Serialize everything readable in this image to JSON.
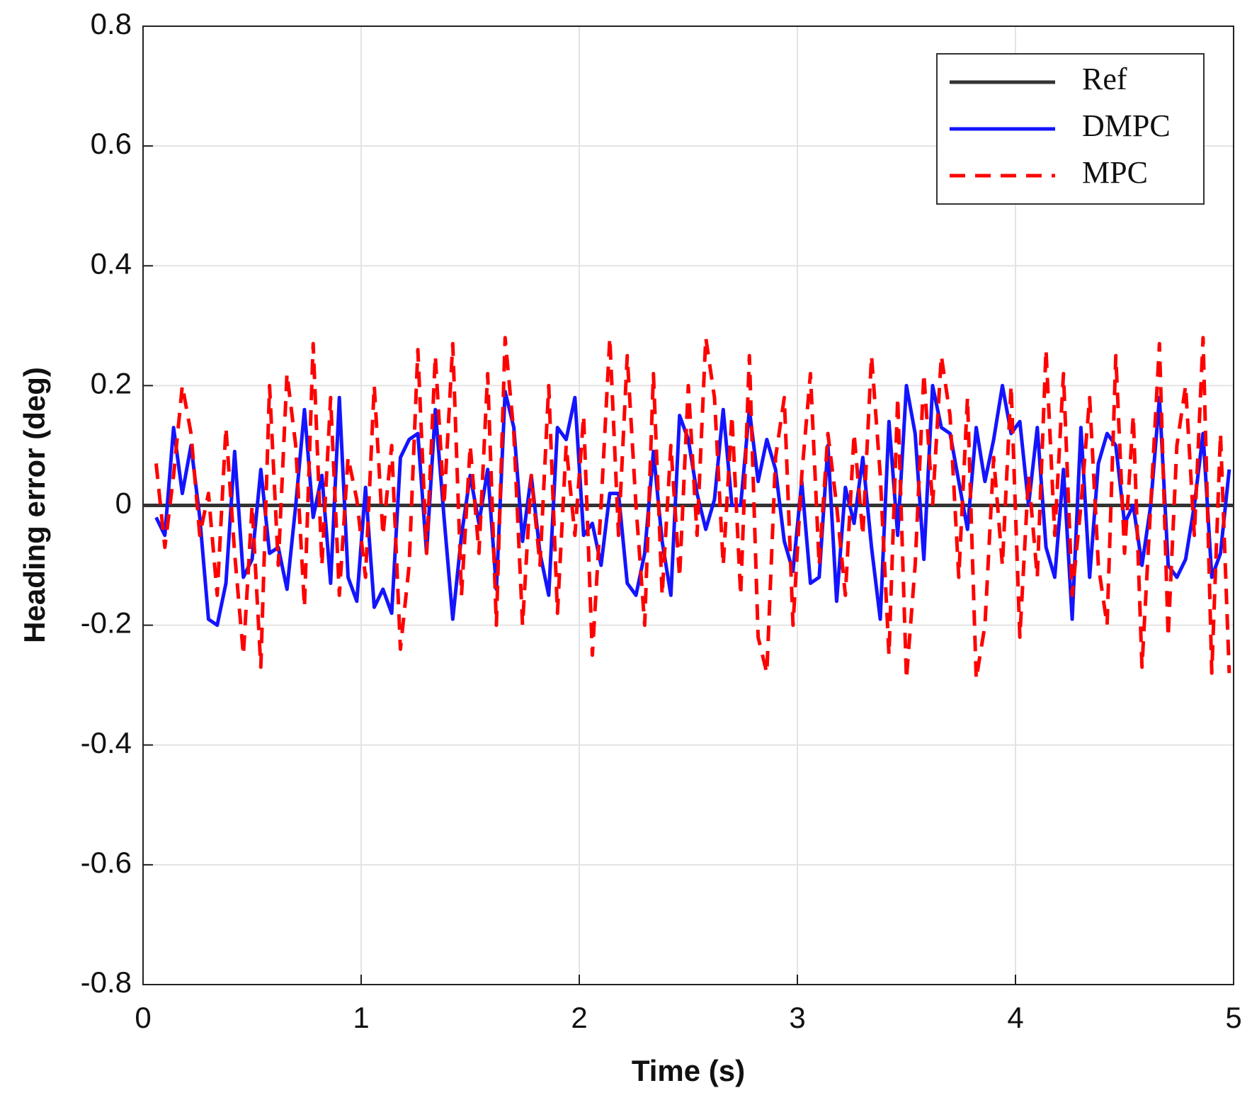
{
  "chart_data": {
    "type": "line",
    "xlabel": "Time (s)",
    "ylabel": "Heading error (deg)",
    "xlim": [
      0,
      5
    ],
    "ylim": [
      -0.8,
      0.8
    ],
    "xticks": [
      0,
      1,
      2,
      3,
      4,
      5
    ],
    "yticks": [
      -0.8,
      -0.6,
      -0.4,
      -0.2,
      0,
      0.2,
      0.4,
      0.6,
      0.8
    ],
    "grid": true,
    "legend": "upper right",
    "x": [
      0.06,
      0.1,
      0.14,
      0.18,
      0.22,
      0.26,
      0.3,
      0.34,
      0.38,
      0.42,
      0.46,
      0.5,
      0.54,
      0.58,
      0.62,
      0.66,
      0.7,
      0.74,
      0.78,
      0.82,
      0.86,
      0.9,
      0.94,
      0.98,
      1.02,
      1.06,
      1.1,
      1.14,
      1.18,
      1.22,
      1.26,
      1.3,
      1.34,
      1.38,
      1.42,
      1.46,
      1.5,
      1.54,
      1.58,
      1.62,
      1.66,
      1.7,
      1.74,
      1.78,
      1.82,
      1.86,
      1.9,
      1.94,
      1.98,
      2.02,
      2.06,
      2.1,
      2.14,
      2.18,
      2.22,
      2.26,
      2.3,
      2.34,
      2.38,
      2.42,
      2.46,
      2.5,
      2.54,
      2.58,
      2.62,
      2.66,
      2.7,
      2.74,
      2.78,
      2.82,
      2.86,
      2.9,
      2.94,
      2.98,
      3.02,
      3.06,
      3.1,
      3.14,
      3.18,
      3.22,
      3.26,
      3.3,
      3.34,
      3.38,
      3.42,
      3.46,
      3.5,
      3.54,
      3.58,
      3.62,
      3.66,
      3.7,
      3.74,
      3.78,
      3.82,
      3.86,
      3.9,
      3.94,
      3.98,
      4.02,
      4.06,
      4.1,
      4.14,
      4.18,
      4.22,
      4.26,
      4.3,
      4.34,
      4.38,
      4.42,
      4.46,
      4.5,
      4.54,
      4.58,
      4.62,
      4.66,
      4.7,
      4.74,
      4.78,
      4.82,
      4.86,
      4.9,
      4.94,
      4.98
    ],
    "series": [
      {
        "name": "Ref",
        "color": "#333333",
        "dashed": false,
        "x": [
          0,
          5
        ],
        "values": [
          0,
          0
        ]
      },
      {
        "name": "DMPC",
        "color": "#1414ff",
        "dashed": false,
        "values": [
          -0.02,
          -0.05,
          0.13,
          0.02,
          0.1,
          -0.02,
          -0.19,
          -0.2,
          -0.13,
          0.09,
          -0.12,
          -0.09,
          0.06,
          -0.08,
          -0.07,
          -0.14,
          0.0,
          0.16,
          -0.02,
          0.05,
          -0.13,
          0.18,
          -0.12,
          -0.16,
          0.03,
          -0.17,
          -0.14,
          -0.18,
          0.08,
          0.11,
          0.12,
          -0.08,
          0.16,
          -0.02,
          -0.19,
          -0.05,
          0.05,
          -0.03,
          0.06,
          -0.14,
          0.19,
          0.13,
          -0.06,
          0.05,
          -0.08,
          -0.15,
          0.13,
          0.11,
          0.18,
          -0.05,
          -0.03,
          -0.1,
          0.02,
          0.02,
          -0.13,
          -0.15,
          -0.08,
          0.09,
          -0.06,
          -0.15,
          0.15,
          0.11,
          0.02,
          -0.04,
          0.01,
          0.16,
          0.0,
          0.0,
          0.16,
          0.04,
          0.11,
          0.06,
          -0.06,
          -0.11,
          0.04,
          -0.13,
          -0.12,
          0.1,
          -0.16,
          0.03,
          -0.03,
          0.08,
          -0.07,
          -0.19,
          0.14,
          -0.05,
          0.2,
          0.12,
          -0.09,
          0.2,
          0.13,
          0.12,
          0.04,
          -0.04,
          0.13,
          0.04,
          0.11,
          0.2,
          0.12,
          0.14,
          0.0,
          0.13,
          -0.07,
          -0.12,
          0.06,
          -0.19,
          0.13,
          -0.12,
          0.07,
          0.12,
          0.1,
          -0.03,
          0.0,
          -0.1,
          0.0,
          0.18,
          -0.1,
          -0.12,
          -0.09,
          0.0,
          0.12,
          -0.12,
          -0.08,
          0.06
        ]
      },
      {
        "name": "MPC",
        "color": "#ff0000",
        "dashed": true,
        "values": [
          0.07,
          -0.07,
          0.05,
          0.2,
          0.12,
          -0.05,
          0.02,
          -0.15,
          0.13,
          -0.08,
          -0.25,
          0.0,
          -0.27,
          0.2,
          -0.1,
          0.22,
          0.1,
          -0.17,
          0.27,
          -0.1,
          0.18,
          -0.15,
          0.08,
          0.01,
          -0.12,
          0.2,
          -0.05,
          0.1,
          -0.24,
          -0.1,
          0.26,
          -0.08,
          0.25,
          0.0,
          0.27,
          -0.15,
          0.1,
          -0.08,
          0.22,
          -0.2,
          0.28,
          0.12,
          -0.2,
          0.05,
          -0.1,
          0.2,
          -0.18,
          0.1,
          -0.05,
          0.15,
          -0.25,
          0.0,
          0.28,
          -0.05,
          0.25,
          0.0,
          -0.2,
          0.22,
          -0.15,
          0.1,
          -0.12,
          0.2,
          -0.05,
          0.28,
          0.18,
          -0.1,
          0.15,
          -0.15,
          0.25,
          -0.22,
          -0.28,
          0.08,
          0.18,
          -0.2,
          0.05,
          0.22,
          -0.1,
          0.12,
          0.0,
          -0.15,
          0.12,
          -0.05,
          0.25,
          0.05,
          -0.25,
          0.18,
          -0.29,
          -0.1,
          0.22,
          0.0,
          0.25,
          0.15,
          -0.12,
          0.18,
          -0.29,
          -0.2,
          0.08,
          -0.1,
          0.2,
          -0.22,
          0.05,
          -0.12,
          0.26,
          -0.05,
          0.22,
          -0.15,
          0.0,
          0.18,
          -0.1,
          -0.2,
          0.25,
          -0.08,
          0.15,
          -0.27,
          0.0,
          0.27,
          -0.22,
          0.1,
          0.2,
          -0.05,
          0.28,
          -0.28,
          0.12,
          -0.28
        ]
      }
    ]
  }
}
